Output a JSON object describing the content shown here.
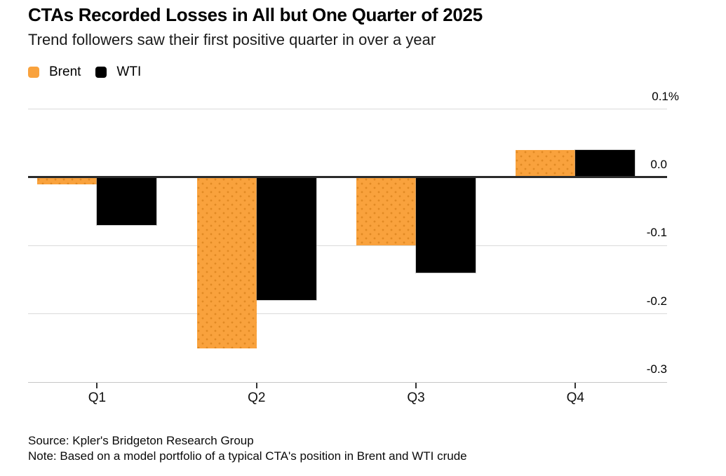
{
  "chart_data": {
    "type": "bar",
    "title": "CTAs Recorded Losses in All but One Quarter of 2025",
    "subtitle": "Trend followers saw their first positive quarter in over a year",
    "categories": [
      "Q1",
      "Q2",
      "Q3",
      "Q4"
    ],
    "series": [
      {
        "name": "Brent",
        "color": "#F9A23D",
        "values": [
          -0.01,
          -0.25,
          -0.1,
          0.04
        ]
      },
      {
        "name": "WTI",
        "color": "#000000",
        "values": [
          -0.07,
          -0.18,
          -0.14,
          0.04
        ]
      }
    ],
    "unit": "%",
    "xlabel": "",
    "ylabel": "",
    "ylim": [
      -0.3,
      0.1
    ],
    "y_ticks": [
      0.1,
      0,
      -0.1,
      -0.2,
      -0.3
    ],
    "y_tick_labels": [
      "0.1%",
      "0.0",
      "-0.1",
      "-0.2",
      "-0.3"
    ],
    "grid": true,
    "legend_position": "top-left",
    "source_line": "Source: Kpler's Bridgeton Research Group",
    "note_line": "Note: Based on a model portfolio of a typical CTA's position in Brent and WTI crude"
  },
  "colors": {
    "brent_orange": "#F9A23D",
    "wti_black": "#000000",
    "gridline": "#dbdbdb",
    "bottom_axis_line": "#c6c6c6",
    "zero_line": "#2b2b2b",
    "tick_mark": "#333333"
  }
}
